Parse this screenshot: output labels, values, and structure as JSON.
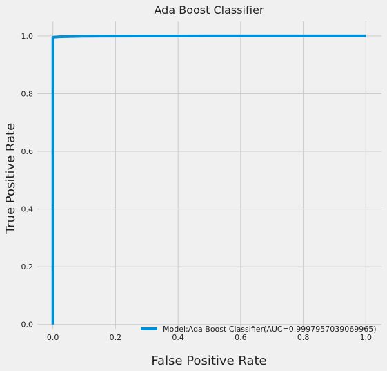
{
  "chart_data": {
    "type": "line",
    "title": "Ada Boost Classifier",
    "xlabel": "False Positive Rate",
    "ylabel": "True Positive Rate",
    "xlim": [
      -0.05,
      1.05
    ],
    "ylim": [
      -0.015,
      1.05
    ],
    "xticks": [
      0.0,
      0.2,
      0.4,
      0.6,
      0.8,
      1.0
    ],
    "yticks": [
      0.0,
      0.2,
      0.4,
      0.6,
      0.8,
      1.0
    ],
    "grid": true,
    "legend_position": "bottom-right",
    "series": [
      {
        "name": "Model:Ada Boost Classifier(AUC=0.9997957039069965)",
        "color": "#008fd5",
        "x": [
          0.0,
          0.0,
          0.0,
          0.005,
          0.02,
          0.05,
          0.1,
          0.15,
          0.3,
          0.5,
          0.8,
          1.0
        ],
        "y": [
          0.0,
          0.6,
          0.995,
          0.996,
          0.997,
          0.998,
          0.999,
          0.9995,
          0.9998,
          1.0,
          1.0,
          1.0
        ]
      }
    ]
  }
}
